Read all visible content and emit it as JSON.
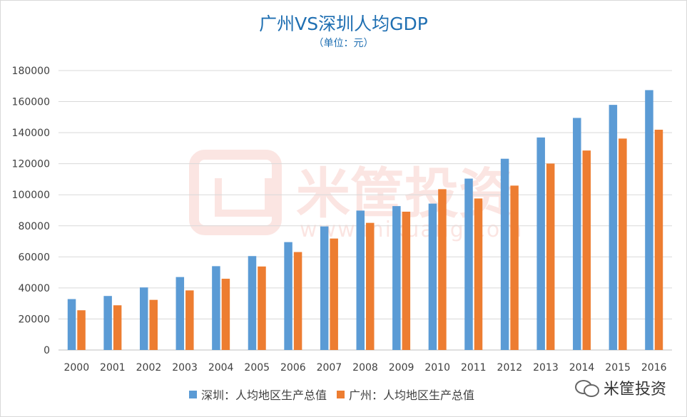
{
  "title": "广州VS深圳人均GDP",
  "subtitle": "（单位：元）",
  "watermark": {
    "name": "米筐投资",
    "url": "www.mikuang.com"
  },
  "brand": {
    "icon": "wechat-icon",
    "name": "米筐投资"
  },
  "colors": {
    "shenzhen": "#5b9bd5",
    "guangzhou": "#ed7d31",
    "title": "#1f6fb2",
    "grid": "#d9d9d9"
  },
  "chart_data": {
    "type": "bar",
    "title": "广州VS深圳人均GDP",
    "subtitle": "（单位：元）",
    "categories": [
      "2000",
      "2001",
      "2002",
      "2003",
      "2004",
      "2005",
      "2006",
      "2007",
      "2008",
      "2009",
      "2010",
      "2011",
      "2012",
      "2013",
      "2014",
      "2015",
      "2016"
    ],
    "series": [
      {
        "name": "深圳：人均地区生产总值",
        "color": "#5b9bd5",
        "values": [
          32800,
          34800,
          40300,
          47000,
          54000,
          60500,
          69500,
          79600,
          89800,
          92700,
          94300,
          110400,
          123200,
          136900,
          149500,
          157900,
          167400
        ]
      },
      {
        "name": "广州：人均地区生产总值",
        "color": "#ed7d31",
        "values": [
          25600,
          28800,
          32300,
          38400,
          45900,
          53800,
          63100,
          71800,
          81900,
          89100,
          103600,
          97600,
          105900,
          120100,
          128500,
          136200,
          141900
        ]
      }
    ],
    "yticks": [
      "0",
      "20000",
      "40000",
      "60000",
      "80000",
      "100000",
      "120000",
      "140000",
      "160000",
      "180000"
    ],
    "ylim": [
      0,
      180000
    ],
    "grid": true,
    "legend": "bottom"
  }
}
